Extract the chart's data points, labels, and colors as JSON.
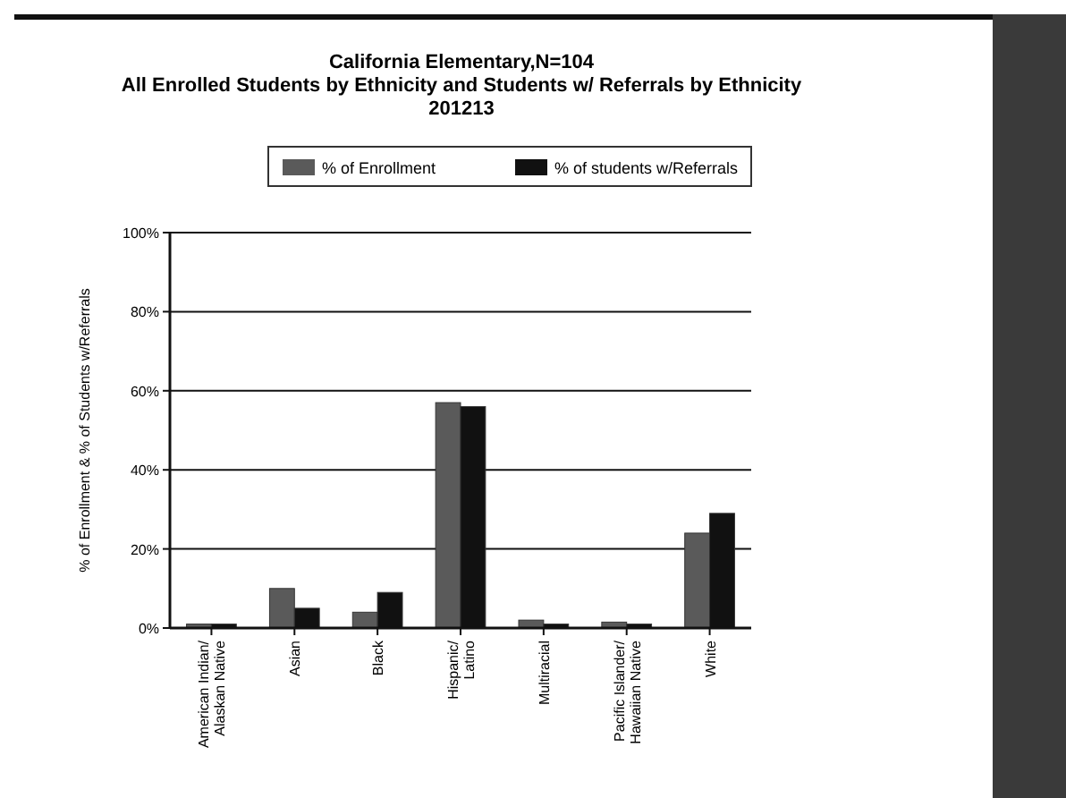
{
  "chart_data": {
    "type": "bar",
    "title": "California  Elementary,N=104\nAll Enrolled Students by Ethnicity and Students w/ Referrals by Ethnicity\n201213",
    "ylabel": "% of Enrollment & % of Students w/Referrals",
    "categories": [
      "American Indian/Alaskan Native",
      "Asian",
      "Black",
      "Hispanic/Latino",
      "Multiracial",
      "Pacific Islander/Hawaiian Native",
      "White"
    ],
    "series": [
      {
        "name": "% of Enrollment",
        "color": "#5a5a5a",
        "values": [
          1,
          10,
          4,
          57,
          2,
          1.5,
          24
        ]
      },
      {
        "name": "% of students w/Referrals",
        "color": "#111111",
        "values": [
          1,
          5,
          9,
          56,
          1,
          1,
          29
        ]
      }
    ],
    "ylim": [
      0,
      100
    ],
    "yticks": [
      {
        "value": 0,
        "label": "0%"
      },
      {
        "value": 20,
        "label": "20%"
      },
      {
        "value": 40,
        "label": "40%"
      },
      {
        "value": 60,
        "label": "60%"
      },
      {
        "value": 80,
        "label": "80%"
      },
      {
        "value": 100,
        "label": "100%"
      }
    ],
    "grid": "y",
    "legend": "top"
  }
}
